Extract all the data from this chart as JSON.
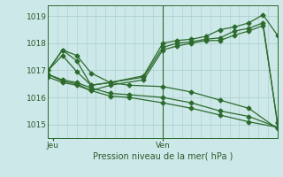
{
  "xlabel": "Pression niveau de la mer( hPa )",
  "ylim": [
    1014.5,
    1019.4
  ],
  "yticks": [
    1015,
    1016,
    1017,
    1018,
    1019
  ],
  "xlim": [
    0,
    48
  ],
  "xtick_positions": [
    1,
    24
  ],
  "xtick_labels": [
    "Jeu",
    "Ven"
  ],
  "bg_color": "#cde8e8",
  "grid_color": "#a8cccc",
  "line_color": "#2d6b2d",
  "marker": "D",
  "markersize": 2.5,
  "linewidth": 0.9,
  "vline_x": 24,
  "series": [
    [
      0,
      1017.0,
      3,
      1017.75,
      6,
      1017.55,
      9,
      1016.9,
      13,
      1016.55,
      17,
      1016.45,
      24,
      1016.4,
      30,
      1016.2,
      36,
      1015.9,
      42,
      1015.6,
      48,
      1014.85
    ],
    [
      0,
      1016.85,
      3,
      1016.65,
      6,
      1016.55,
      9,
      1016.35,
      13,
      1016.15,
      17,
      1016.1,
      24,
      1016.0,
      30,
      1015.8,
      36,
      1015.5,
      42,
      1015.3,
      48,
      1014.9
    ],
    [
      0,
      1016.75,
      3,
      1016.55,
      6,
      1016.45,
      9,
      1016.25,
      13,
      1016.05,
      17,
      1016.0,
      24,
      1015.8,
      30,
      1015.6,
      36,
      1015.35,
      42,
      1015.1,
      48,
      1014.9
    ],
    [
      0,
      1017.0,
      3,
      1017.75,
      6,
      1017.35,
      9,
      1016.45,
      13,
      1016.55,
      20,
      1016.8,
      24,
      1018.0,
      27,
      1018.1,
      30,
      1018.15,
      33,
      1018.25,
      36,
      1018.5,
      39,
      1018.6,
      42,
      1018.75,
      45,
      1019.05,
      48,
      1018.3
    ],
    [
      0,
      1017.0,
      3,
      1017.55,
      6,
      1016.95,
      9,
      1016.45,
      13,
      1016.55,
      20,
      1016.75,
      24,
      1017.85,
      27,
      1018.0,
      30,
      1018.05,
      33,
      1018.15,
      36,
      1018.2,
      39,
      1018.45,
      42,
      1018.55,
      45,
      1018.75,
      48,
      1015.05
    ],
    [
      0,
      1016.85,
      3,
      1016.6,
      6,
      1016.5,
      9,
      1016.25,
      13,
      1016.45,
      20,
      1016.65,
      24,
      1017.75,
      27,
      1017.9,
      30,
      1018.0,
      33,
      1018.1,
      36,
      1018.1,
      39,
      1018.3,
      42,
      1018.45,
      45,
      1018.65,
      48,
      1015.1
    ]
  ]
}
